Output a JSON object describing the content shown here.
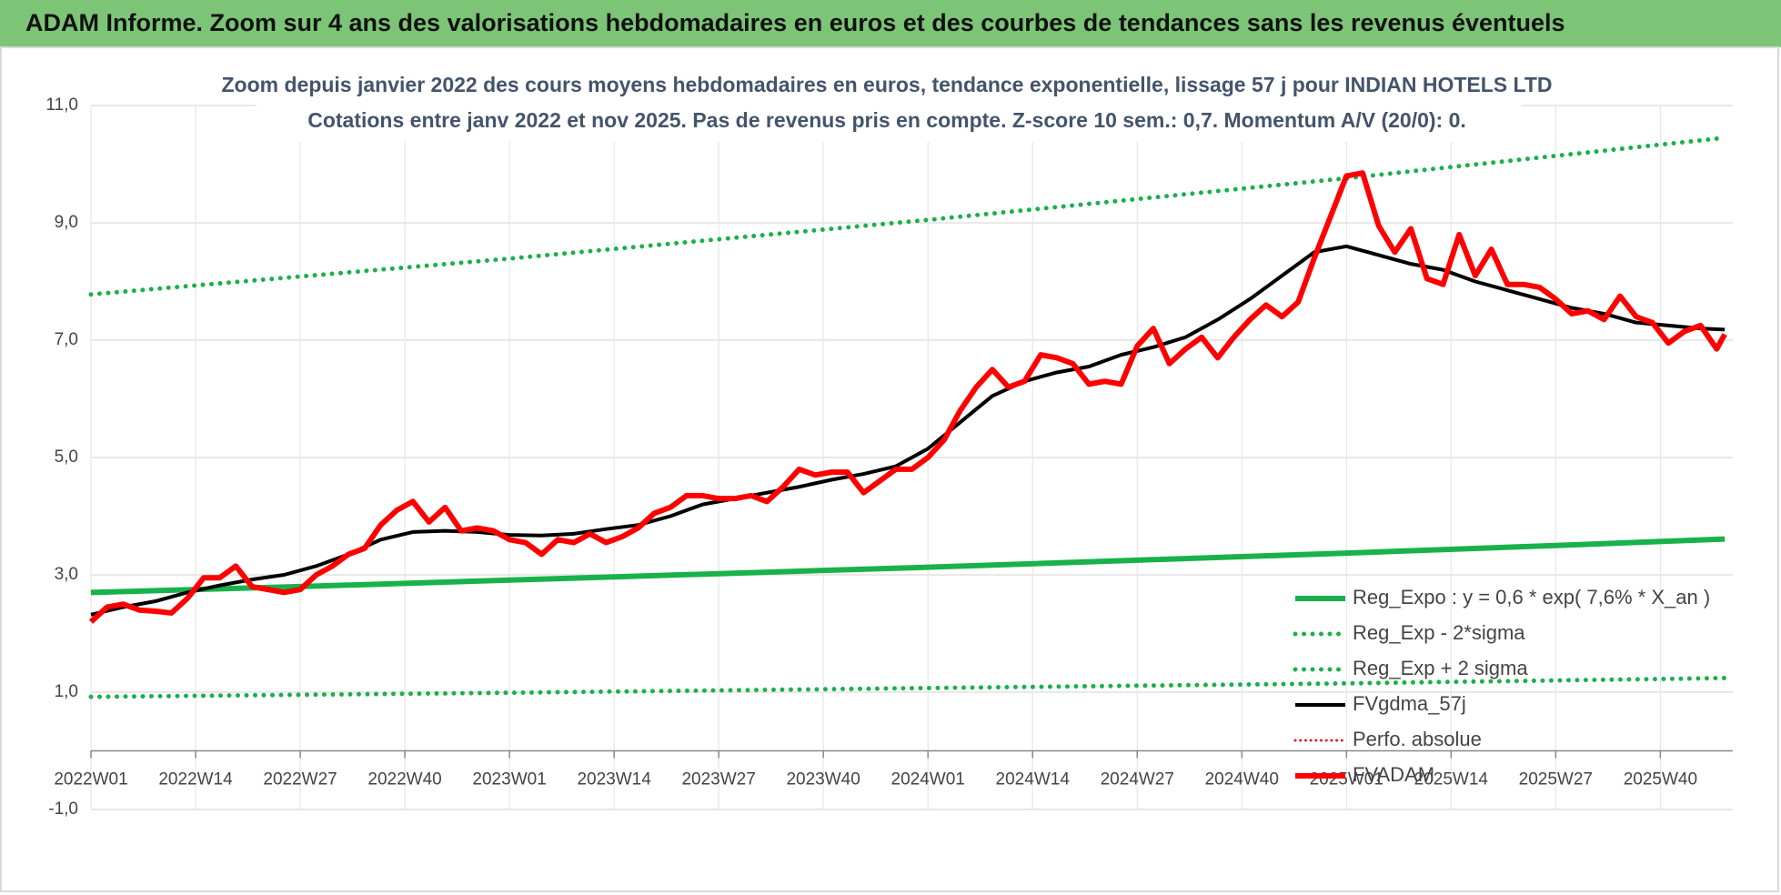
{
  "chart_data": {
    "type": "line",
    "header": "ADAM Informe. Zoom sur 4 ans des valorisations hebdomadaires en euros et des courbes de tendances sans les revenus éventuels",
    "title": "Zoom depuis janvier 2022 des cours moyens hebdomadaires en euros, tendance exponentielle, lissage 57 j pour INDIAN HOTELS LTD",
    "subtitle": "Cotations entre janv 2022 et nov 2025. Pas de revenus pris en compte. Z-score 10 sem.: 0,7. Momentum A/V (20/0): 0.",
    "xlim": [
      0,
      204
    ],
    "xticks": [
      {
        "value": 0,
        "label": "2022W01"
      },
      {
        "value": 13,
        "label": "2022W14"
      },
      {
        "value": 26,
        "label": "2022W27"
      },
      {
        "value": 39,
        "label": "2022W40"
      },
      {
        "value": 52,
        "label": "2023W01"
      },
      {
        "value": 65,
        "label": "2023W14"
      },
      {
        "value": 78,
        "label": "2023W27"
      },
      {
        "value": 91,
        "label": "2023W40"
      },
      {
        "value": 104,
        "label": "2024W01"
      },
      {
        "value": 117,
        "label": "2024W14"
      },
      {
        "value": 130,
        "label": "2024W27"
      },
      {
        "value": 143,
        "label": "2024W40"
      },
      {
        "value": 156,
        "label": "2025W01"
      },
      {
        "value": 169,
        "label": "2025W14"
      },
      {
        "value": 182,
        "label": "2025W27"
      },
      {
        "value": 195,
        "label": "2025W40"
      }
    ],
    "ylim": [
      -1,
      11
    ],
    "yticks": [
      {
        "value": -1,
        "label": "-1,0"
      },
      {
        "value": 1,
        "label": "1,0"
      },
      {
        "value": 3,
        "label": "3,0"
      },
      {
        "value": 5,
        "label": "5,0"
      },
      {
        "value": 7,
        "label": "7,0"
      },
      {
        "value": 9,
        "label": "9,0"
      },
      {
        "value": 11,
        "label": "11,0"
      }
    ],
    "grid": true,
    "legend": "right",
    "series": [
      {
        "name": "Reg_Expo : y = 0,6 * exp( 7,6% *  X_an )",
        "color": "#19b14b",
        "style": "solid",
        "width": 6,
        "x": [
          0,
          26,
          52,
          78,
          104,
          130,
          156,
          182,
          203
        ],
        "values": [
          2.7,
          2.8,
          2.91,
          3.02,
          3.13,
          3.25,
          3.37,
          3.5,
          3.61
        ]
      },
      {
        "name": "Reg_Exp - 2*sigma",
        "color": "#19b14b",
        "style": "dotted",
        "width": 5,
        "x": [
          0,
          52,
          104,
          156,
          203
        ],
        "values": [
          0.92,
          0.99,
          1.07,
          1.15,
          1.24
        ]
      },
      {
        "name": "Reg_Exp + 2 sigma",
        "color": "#19b14b",
        "style": "dotted",
        "width": 5,
        "x": [
          0,
          52,
          104,
          156,
          203
        ],
        "values": [
          7.78,
          8.39,
          9.05,
          9.76,
          10.45
        ]
      },
      {
        "name": "FVgdma_57j",
        "color": "#000000",
        "style": "solid",
        "width": 4,
        "x": [
          0,
          4,
          8,
          12,
          16,
          20,
          24,
          28,
          32,
          36,
          40,
          44,
          48,
          52,
          56,
          60,
          64,
          68,
          72,
          76,
          80,
          84,
          88,
          92,
          96,
          100,
          104,
          108,
          112,
          116,
          120,
          124,
          128,
          132,
          136,
          140,
          144,
          148,
          152,
          156,
          160,
          164,
          168,
          172,
          176,
          180,
          184,
          188,
          192,
          196,
          200,
          203
        ],
        "values": [
          2.32,
          2.45,
          2.55,
          2.7,
          2.82,
          2.92,
          3.0,
          3.15,
          3.35,
          3.6,
          3.73,
          3.75,
          3.73,
          3.68,
          3.67,
          3.7,
          3.78,
          3.85,
          4.0,
          4.2,
          4.3,
          4.4,
          4.5,
          4.62,
          4.72,
          4.85,
          5.15,
          5.6,
          6.05,
          6.3,
          6.45,
          6.55,
          6.75,
          6.88,
          7.05,
          7.35,
          7.7,
          8.1,
          8.5,
          8.6,
          8.45,
          8.3,
          8.2,
          8.0,
          7.85,
          7.7,
          7.55,
          7.45,
          7.3,
          7.25,
          7.2,
          7.18
        ]
      },
      {
        "name": "Perfo. absolue",
        "color": "#e0201b",
        "style": "dotted",
        "width": 3,
        "x": [],
        "values": []
      },
      {
        "name": "FVADAM",
        "color": "#ff0000",
        "style": "solid",
        "width": 6,
        "x": [
          0,
          2,
          4,
          6,
          8,
          10,
          12,
          14,
          16,
          18,
          20,
          22,
          24,
          26,
          28,
          30,
          32,
          34,
          36,
          38,
          40,
          42,
          44,
          46,
          48,
          50,
          52,
          54,
          56,
          58,
          60,
          62,
          64,
          66,
          68,
          70,
          72,
          74,
          76,
          78,
          80,
          82,
          84,
          86,
          88,
          90,
          92,
          94,
          96,
          98,
          100,
          102,
          104,
          106,
          108,
          110,
          112,
          114,
          116,
          118,
          120,
          122,
          124,
          126,
          128,
          130,
          132,
          134,
          136,
          138,
          140,
          142,
          144,
          146,
          148,
          150,
          152,
          154,
          156,
          158,
          160,
          162,
          164,
          166,
          168,
          170,
          172,
          174,
          176,
          178,
          180,
          182,
          184,
          186,
          188,
          190,
          192,
          194,
          196,
          198,
          200,
          202,
          203
        ],
        "values": [
          2.2,
          2.45,
          2.5,
          2.4,
          2.38,
          2.35,
          2.6,
          2.95,
          2.95,
          3.15,
          2.8,
          2.75,
          2.7,
          2.75,
          3.0,
          3.15,
          3.35,
          3.45,
          3.85,
          4.1,
          4.25,
          3.9,
          4.15,
          3.75,
          3.8,
          3.75,
          3.6,
          3.55,
          3.35,
          3.6,
          3.55,
          3.7,
          3.55,
          3.65,
          3.8,
          4.05,
          4.15,
          4.35,
          4.35,
          4.3,
          4.3,
          4.35,
          4.25,
          4.5,
          4.8,
          4.7,
          4.75,
          4.75,
          4.4,
          4.6,
          4.8,
          4.8,
          5.0,
          5.3,
          5.8,
          6.2,
          6.5,
          6.2,
          6.3,
          6.75,
          6.7,
          6.6,
          6.25,
          6.3,
          6.25,
          6.9,
          7.2,
          6.6,
          6.85,
          7.05,
          6.7,
          7.05,
          7.35,
          7.6,
          7.4,
          7.65,
          8.4,
          9.1,
          9.8,
          9.85,
          8.95,
          8.5,
          8.9,
          8.05,
          7.95,
          8.8,
          8.1,
          8.55,
          7.95,
          7.95,
          7.9,
          7.7,
          7.45,
          7.5,
          7.35,
          7.75,
          7.4,
          7.3,
          6.95,
          7.15,
          7.25,
          6.85,
          7.1
        ]
      }
    ]
  }
}
